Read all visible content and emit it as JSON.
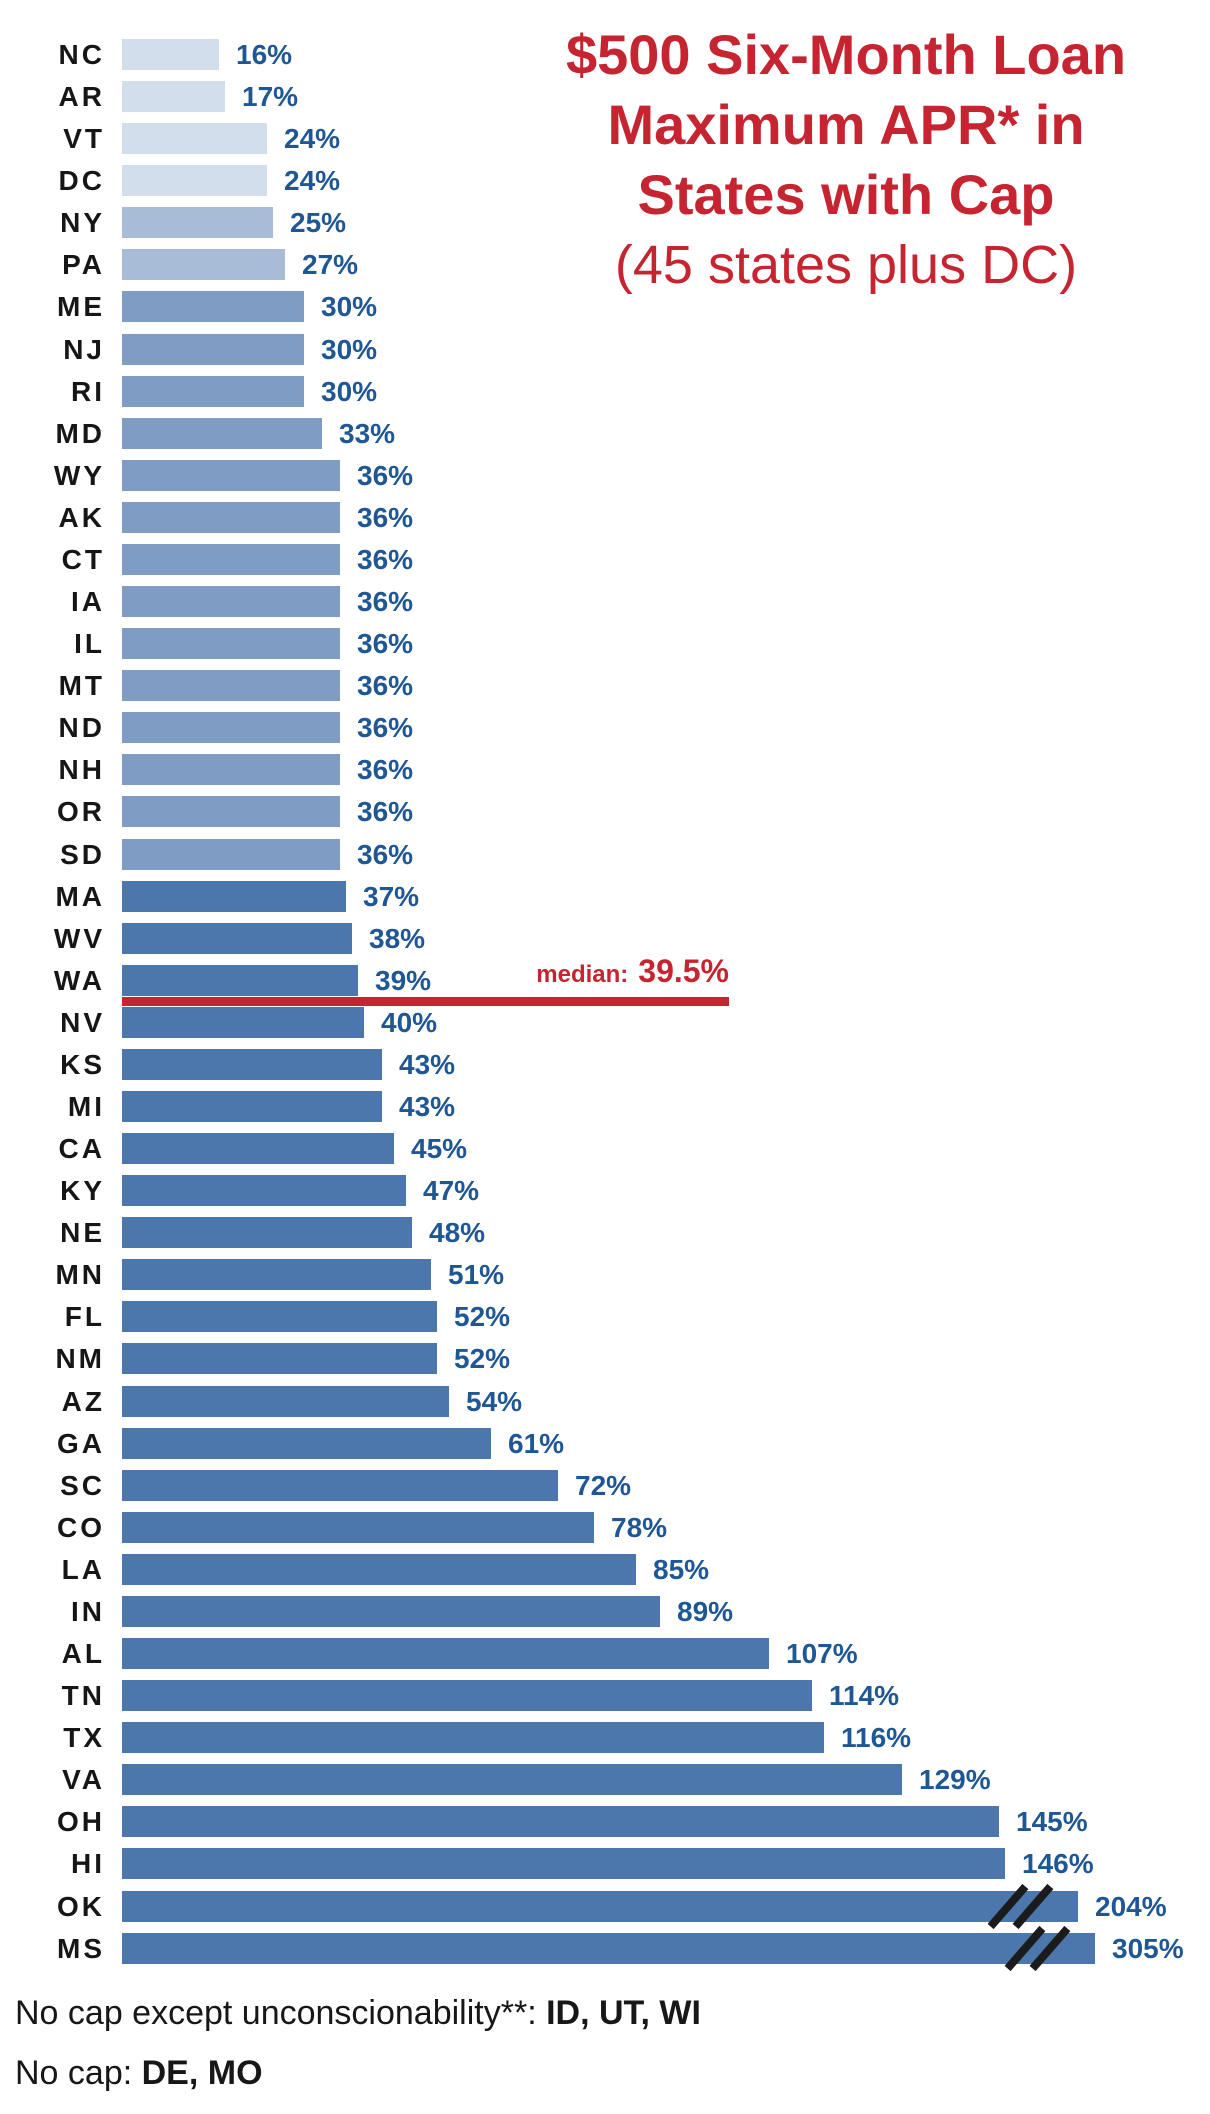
{
  "title": {
    "line1": "$500 Six-Month Loan",
    "line2": "Maximum APR* in",
    "line3": "States with Cap",
    "subtitle": "(45 states plus DC)"
  },
  "median": {
    "label": "median:",
    "value": "39.5%"
  },
  "footnotes": [
    {
      "prefix": "No cap except unconscionability**: ",
      "bold": "ID, UT, WI"
    },
    {
      "prefix": "No cap: ",
      "bold": "DE, MO"
    }
  ],
  "colors": {
    "title-red": "#c62430",
    "value-blue": "#1f5795",
    "bar-shade-1": "#d3deed",
    "bar-shade-2": "#a8bcd8",
    "bar-shade-3": "#7f9cc4",
    "bar-shade-4": "#4b77ad",
    "break-mark-black": "#1b1b1b",
    "state-label-black": "#161616"
  },
  "rows": [
    {
      "state": "NC",
      "value": 16,
      "label": "16%",
      "shade": 1
    },
    {
      "state": "AR",
      "value": 17,
      "label": "17%",
      "shade": 1
    },
    {
      "state": "VT",
      "value": 24,
      "label": "24%",
      "shade": 1
    },
    {
      "state": "DC",
      "value": 24,
      "label": "24%",
      "shade": 1
    },
    {
      "state": "NY",
      "value": 25,
      "label": "25%",
      "shade": 2
    },
    {
      "state": "PA",
      "value": 27,
      "label": "27%",
      "shade": 2
    },
    {
      "state": "ME",
      "value": 30,
      "label": "30%",
      "shade": 3
    },
    {
      "state": "NJ",
      "value": 30,
      "label": "30%",
      "shade": 3
    },
    {
      "state": "RI",
      "value": 30,
      "label": "30%",
      "shade": 3
    },
    {
      "state": "MD",
      "value": 33,
      "label": "33%",
      "shade": 3
    },
    {
      "state": "WY",
      "value": 36,
      "label": "36%",
      "shade": 3
    },
    {
      "state": "AK",
      "value": 36,
      "label": "36%",
      "shade": 3
    },
    {
      "state": "CT",
      "value": 36,
      "label": "36%",
      "shade": 3
    },
    {
      "state": "IA",
      "value": 36,
      "label": "36%",
      "shade": 3
    },
    {
      "state": "IL",
      "value": 36,
      "label": "36%",
      "shade": 3
    },
    {
      "state": "MT",
      "value": 36,
      "label": "36%",
      "shade": 3
    },
    {
      "state": "ND",
      "value": 36,
      "label": "36%",
      "shade": 3
    },
    {
      "state": "NH",
      "value": 36,
      "label": "36%",
      "shade": 3
    },
    {
      "state": "OR",
      "value": 36,
      "label": "36%",
      "shade": 3
    },
    {
      "state": "SD",
      "value": 36,
      "label": "36%",
      "shade": 3
    },
    {
      "state": "MA",
      "value": 37,
      "label": "37%",
      "shade": 4
    },
    {
      "state": "WV",
      "value": 38,
      "label": "38%",
      "shade": 4
    },
    {
      "state": "WA",
      "value": 39,
      "label": "39%",
      "shade": 4
    },
    {
      "state": "NV",
      "value": 40,
      "label": "40%",
      "shade": 4
    },
    {
      "state": "KS",
      "value": 43,
      "label": "43%",
      "shade": 4
    },
    {
      "state": "MI",
      "value": 43,
      "label": "43%",
      "shade": 4
    },
    {
      "state": "CA",
      "value": 45,
      "label": "45%",
      "shade": 4
    },
    {
      "state": "KY",
      "value": 47,
      "label": "47%",
      "shade": 4
    },
    {
      "state": "NE",
      "value": 48,
      "label": "48%",
      "shade": 4
    },
    {
      "state": "MN",
      "value": 51,
      "label": "51%",
      "shade": 4
    },
    {
      "state": "FL",
      "value": 52,
      "label": "52%",
      "shade": 4
    },
    {
      "state": "NM",
      "value": 52,
      "label": "52%",
      "shade": 4
    },
    {
      "state": "AZ",
      "value": 54,
      "label": "54%",
      "shade": 4
    },
    {
      "state": "GA",
      "value": 61,
      "label": "61%",
      "shade": 4
    },
    {
      "state": "SC",
      "value": 72,
      "label": "72%",
      "shade": 4
    },
    {
      "state": "CO",
      "value": 78,
      "label": "78%",
      "shade": 4
    },
    {
      "state": "LA",
      "value": 85,
      "label": "85%",
      "shade": 4
    },
    {
      "state": "IN",
      "value": 89,
      "label": "89%",
      "shade": 4
    },
    {
      "state": "AL",
      "value": 107,
      "label": "107%",
      "shade": 4
    },
    {
      "state": "TN",
      "value": 114,
      "label": "114%",
      "shade": 4
    },
    {
      "state": "TX",
      "value": 116,
      "label": "116%",
      "shade": 4
    },
    {
      "state": "VA",
      "value": 129,
      "label": "129%",
      "shade": 4
    },
    {
      "state": "OH",
      "value": 145,
      "label": "145%",
      "shade": 4
    },
    {
      "state": "HI",
      "value": 146,
      "label": "146%",
      "shade": 4
    },
    {
      "state": "OK",
      "value": 204,
      "label": "204%",
      "shade": 4,
      "truncated": true
    },
    {
      "state": "MS",
      "value": 305,
      "label": "305%",
      "shade": 4,
      "truncated": true
    }
  ],
  "chart_data": {
    "type": "bar",
    "orientation": "horizontal",
    "title": "$500 Six-Month Loan Maximum APR* in States with Cap (45 states plus DC)",
    "categories": [
      "NC",
      "AR",
      "VT",
      "DC",
      "NY",
      "PA",
      "ME",
      "NJ",
      "RI",
      "MD",
      "WY",
      "AK",
      "CT",
      "IA",
      "IL",
      "MT",
      "ND",
      "NH",
      "OR",
      "SD",
      "MA",
      "WV",
      "WA",
      "NV",
      "KS",
      "MI",
      "CA",
      "KY",
      "NE",
      "MN",
      "FL",
      "NM",
      "AZ",
      "GA",
      "SC",
      "CO",
      "LA",
      "IN",
      "AL",
      "TN",
      "TX",
      "VA",
      "OH",
      "HI",
      "OK",
      "MS"
    ],
    "values": [
      16,
      17,
      24,
      24,
      25,
      27,
      30,
      30,
      30,
      33,
      36,
      36,
      36,
      36,
      36,
      36,
      36,
      36,
      36,
      36,
      37,
      38,
      39,
      40,
      43,
      43,
      45,
      47,
      48,
      51,
      52,
      52,
      54,
      61,
      72,
      78,
      85,
      89,
      107,
      114,
      116,
      129,
      145,
      146,
      204,
      305
    ],
    "value_unit": "%",
    "annotations": [
      {
        "type": "median-line",
        "label": "median: 39.5%",
        "value": 39.5,
        "after_category": "WA"
      }
    ],
    "broken_axis_bars": [
      "OK",
      "MS"
    ],
    "grid": false,
    "legend": false,
    "xlabel": "",
    "ylabel": "",
    "notes": [
      "No cap except unconscionability**: ID, UT, WI",
      "No cap: DE, MO"
    ]
  }
}
